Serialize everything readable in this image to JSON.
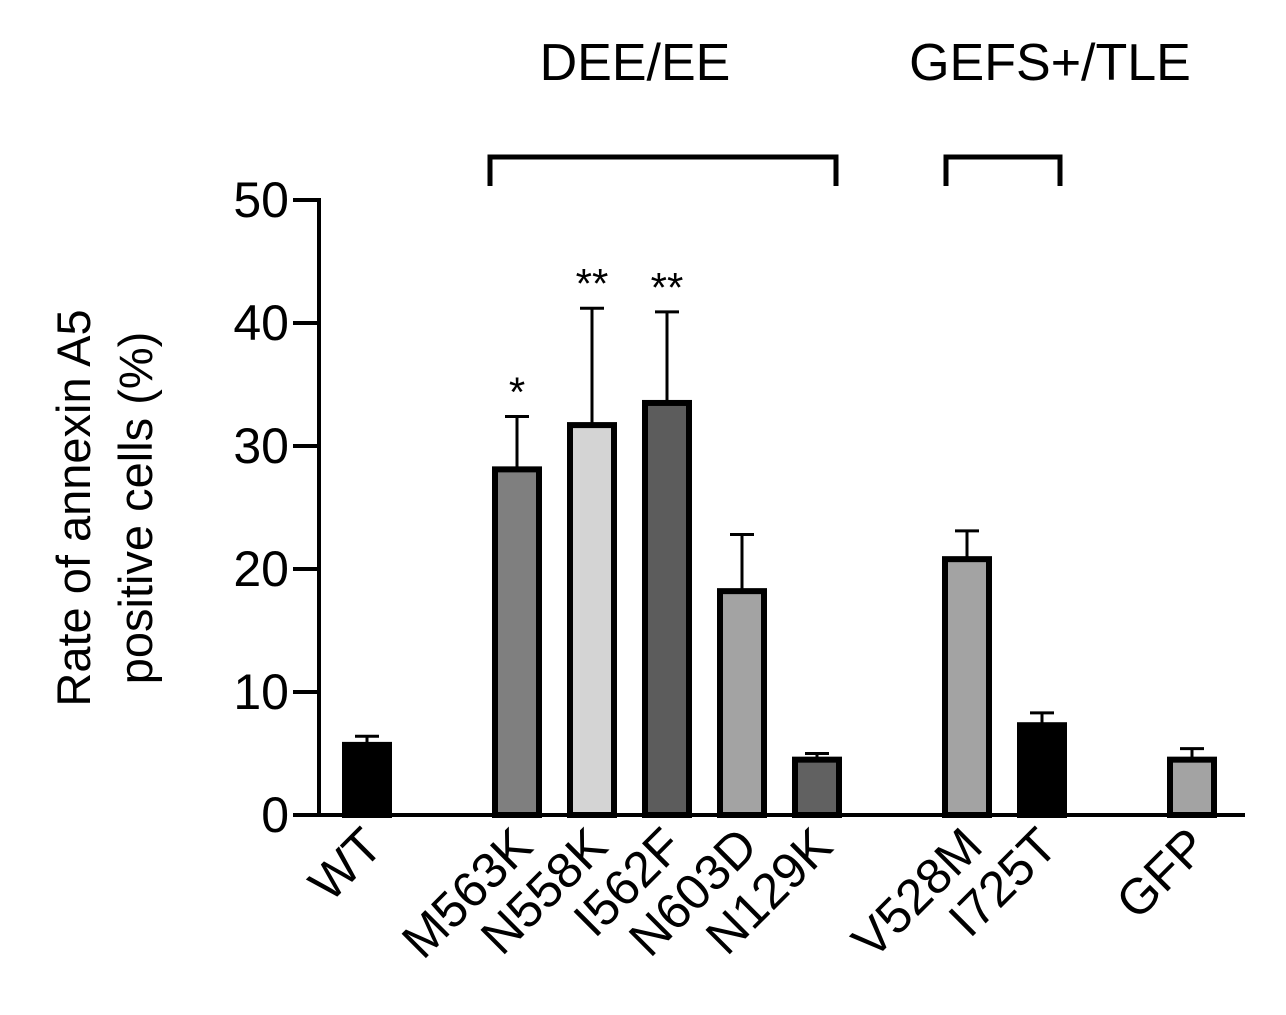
{
  "chart_data": {
    "type": "bar",
    "ylabel_line1": "Rate of annexin A5",
    "ylabel_line2": "positive cells (%)",
    "ylim": [
      0,
      50
    ],
    "yticks": [
      "0",
      "10",
      "20",
      "30",
      "40",
      "50"
    ],
    "categories": [
      "WT",
      "M563K",
      "N558K",
      "I562F",
      "N603D",
      "N129K",
      "V528M",
      "I725T",
      "GFP"
    ],
    "values": [
      5.7,
      28.1,
      31.7,
      33.5,
      18.2,
      4.5,
      20.8,
      7.3,
      4.5
    ],
    "errors": [
      0.7,
      4.3,
      9.5,
      7.4,
      4.6,
      0.5,
      2.3,
      1.0,
      0.9
    ],
    "bar_colors": [
      "#000000",
      "#7f7f7f",
      "#d4d4d4",
      "#5c5c5c",
      "#a3a3a3",
      "#616161",
      "#a3a3a3",
      "#000000",
      "#a3a3a3"
    ],
    "significance": [
      "",
      "*",
      "**",
      "**",
      "",
      "",
      "",
      "",
      ""
    ],
    "groups": [
      {
        "label": "DEE/EE"
      },
      {
        "label": "GEFS+/TLE"
      }
    ],
    "grid": false,
    "legend": "none"
  }
}
